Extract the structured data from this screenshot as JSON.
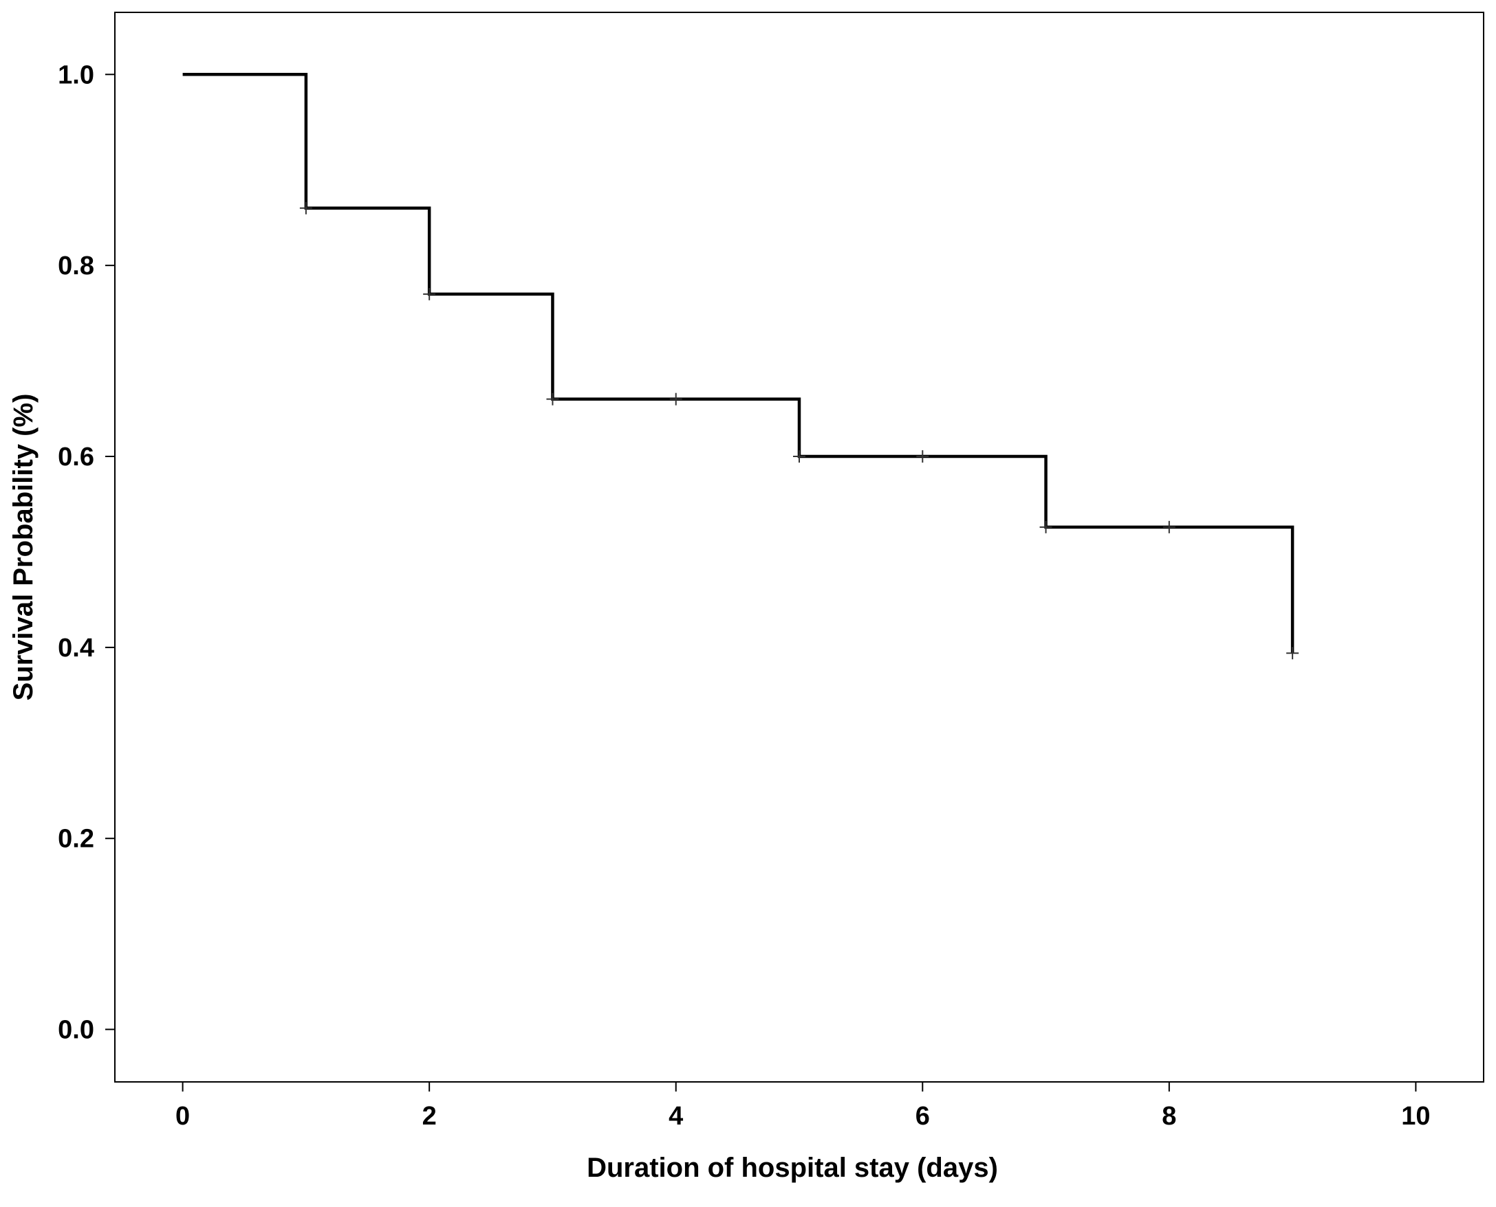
{
  "chart_data": {
    "type": "line",
    "step": true,
    "title": "",
    "xlabel": "Duration of hospital stay (days)",
    "ylabel": "Survival Probability (%)",
    "xlim": [
      -0.55,
      10.55
    ],
    "ylim": [
      -0.055,
      1.065
    ],
    "x_ticks": [
      0,
      2,
      4,
      6,
      8,
      10
    ],
    "x_tick_labels": [
      "0",
      "2",
      "4",
      "6",
      "8",
      "10"
    ],
    "y_ticks": [
      0.0,
      0.2,
      0.4,
      0.6,
      0.8,
      1.0
    ],
    "y_tick_labels": [
      "0.0",
      "0.2",
      "0.4",
      "0.6",
      "0.8",
      "1.0"
    ],
    "grid": false,
    "series": [
      {
        "steps": [
          {
            "x": 0,
            "y": 1.0
          },
          {
            "x": 1,
            "y": 0.86
          },
          {
            "x": 2,
            "y": 0.77
          },
          {
            "x": 3,
            "y": 0.66
          },
          {
            "x": 5,
            "y": 0.6
          },
          {
            "x": 7,
            "y": 0.526
          },
          {
            "x": 9,
            "y": 0.394
          }
        ],
        "end_x": 9,
        "censored": [
          {
            "x": 1,
            "y": 0.86
          },
          {
            "x": 2,
            "y": 0.77
          },
          {
            "x": 3,
            "y": 0.66
          },
          {
            "x": 4,
            "y": 0.66
          },
          {
            "x": 5,
            "y": 0.6
          },
          {
            "x": 6,
            "y": 0.6
          },
          {
            "x": 7,
            "y": 0.526
          },
          {
            "x": 8,
            "y": 0.526
          },
          {
            "x": 9,
            "y": 0.394
          }
        ],
        "color": "#000000"
      }
    ]
  }
}
